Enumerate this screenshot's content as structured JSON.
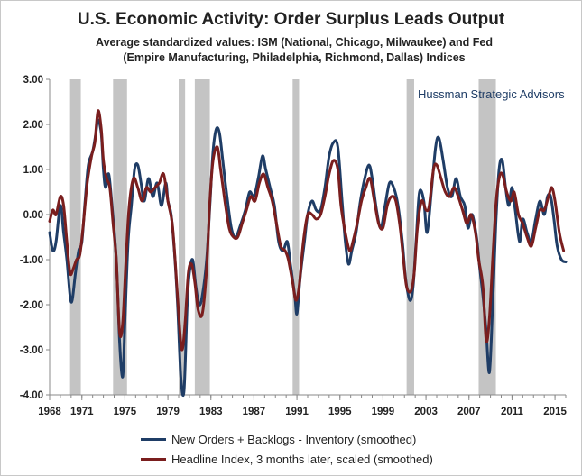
{
  "chart_data": {
    "type": "line",
    "title": "U.S. Economic Activity: Order Surplus Leads Output",
    "subtitle": "Average standardized values: ISM (National, Chicago, Milwaukee) and Fed (Empire Manufacturing, Philadelphia, Richmond, Dallas) Indices",
    "annotation": "Hussman Strategic Advisors",
    "xlabel": "",
    "ylabel": "",
    "xlim": [
      1968,
      2016
    ],
    "ylim": [
      -4,
      3
    ],
    "x_ticks": [
      "1968",
      "1971",
      "1975",
      "1979",
      "1983",
      "1987",
      "1991",
      "1995",
      "1999",
      "2003",
      "2007",
      "2011",
      "2015"
    ],
    "y_ticks": [
      "3.00",
      "2.00",
      "1.00",
      "0.00",
      "-1.00",
      "-2.00",
      "-3.00",
      "-4.00"
    ],
    "grid": false,
    "legend_position": "bottom",
    "recessions": [
      [
        1969.9,
        1970.9
      ],
      [
        1973.9,
        1975.2
      ],
      [
        1980.0,
        1980.6
      ],
      [
        1981.5,
        1982.9
      ],
      [
        1990.6,
        1991.2
      ],
      [
        2001.2,
        2001.9
      ],
      [
        2007.9,
        2009.5
      ]
    ],
    "series": [
      {
        "name": "New Orders + Backlogs - Inventory (smoothed)",
        "color": "#1f3d66",
        "points": [
          [
            1968.0,
            -0.4
          ],
          [
            1968.3,
            -0.8
          ],
          [
            1968.6,
            -0.6
          ],
          [
            1969.0,
            0.2
          ],
          [
            1969.3,
            -0.4
          ],
          [
            1969.6,
            -1.0
          ],
          [
            1969.9,
            -1.8
          ],
          [
            1970.1,
            -1.9
          ],
          [
            1970.4,
            -1.3
          ],
          [
            1970.7,
            -0.8
          ],
          [
            1971.0,
            -0.6
          ],
          [
            1971.3,
            0.3
          ],
          [
            1971.6,
            1.1
          ],
          [
            1972.0,
            1.4
          ],
          [
            1972.3,
            1.8
          ],
          [
            1972.5,
            2.1
          ],
          [
            1972.8,
            1.8
          ],
          [
            1973.0,
            1.0
          ],
          [
            1973.2,
            0.6
          ],
          [
            1973.5,
            0.9
          ],
          [
            1973.8,
            0.2
          ],
          [
            1974.2,
            -1.0
          ],
          [
            1974.5,
            -2.8
          ],
          [
            1974.8,
            -3.6
          ],
          [
            1975.0,
            -2.4
          ],
          [
            1975.3,
            -0.6
          ],
          [
            1975.6,
            0.2
          ],
          [
            1975.9,
            1.0
          ],
          [
            1976.2,
            1.1
          ],
          [
            1976.5,
            0.7
          ],
          [
            1976.8,
            0.3
          ],
          [
            1977.2,
            0.8
          ],
          [
            1977.6,
            0.4
          ],
          [
            1978.0,
            0.7
          ],
          [
            1978.4,
            0.2
          ],
          [
            1978.8,
            0.7
          ],
          [
            1979.0,
            0.3
          ],
          [
            1979.3,
            0.0
          ],
          [
            1979.6,
            -0.8
          ],
          [
            1979.9,
            -2.0
          ],
          [
            1980.2,
            -3.6
          ],
          [
            1980.5,
            -3.9
          ],
          [
            1980.8,
            -2.0
          ],
          [
            1981.0,
            -1.3
          ],
          [
            1981.3,
            -1.0
          ],
          [
            1981.6,
            -1.6
          ],
          [
            1981.9,
            -2.0
          ],
          [
            1982.2,
            -1.8
          ],
          [
            1982.6,
            -1.0
          ],
          [
            1982.9,
            0.2
          ],
          [
            1983.2,
            1.4
          ],
          [
            1983.5,
            1.9
          ],
          [
            1983.8,
            1.8
          ],
          [
            1984.1,
            1.2
          ],
          [
            1984.5,
            0.4
          ],
          [
            1984.9,
            -0.3
          ],
          [
            1985.3,
            -0.5
          ],
          [
            1985.8,
            -0.2
          ],
          [
            1986.2,
            0.1
          ],
          [
            1986.6,
            0.5
          ],
          [
            1987.0,
            0.4
          ],
          [
            1987.4,
            0.8
          ],
          [
            1987.8,
            1.3
          ],
          [
            1988.1,
            1.0
          ],
          [
            1988.5,
            0.6
          ],
          [
            1988.9,
            0.2
          ],
          [
            1989.3,
            -0.6
          ],
          [
            1989.7,
            -0.8
          ],
          [
            1990.1,
            -0.6
          ],
          [
            1990.4,
            -1.1
          ],
          [
            1990.8,
            -1.8
          ],
          [
            1991.0,
            -2.2
          ],
          [
            1991.3,
            -1.4
          ],
          [
            1991.7,
            -0.6
          ],
          [
            1992.0,
            0.0
          ],
          [
            1992.4,
            0.3
          ],
          [
            1992.8,
            0.1
          ],
          [
            1993.2,
            0.1
          ],
          [
            1993.6,
            0.6
          ],
          [
            1994.0,
            1.3
          ],
          [
            1994.4,
            1.6
          ],
          [
            1994.8,
            1.5
          ],
          [
            1995.2,
            0.3
          ],
          [
            1995.5,
            -0.6
          ],
          [
            1995.8,
            -1.1
          ],
          [
            1996.1,
            -0.8
          ],
          [
            1996.5,
            -0.4
          ],
          [
            1996.9,
            0.3
          ],
          [
            1997.3,
            0.8
          ],
          [
            1997.7,
            1.1
          ],
          [
            1998.0,
            0.8
          ],
          [
            1998.4,
            0.1
          ],
          [
            1998.8,
            -0.3
          ],
          [
            1999.2,
            0.2
          ],
          [
            1999.6,
            0.7
          ],
          [
            2000.0,
            0.6
          ],
          [
            2000.4,
            0.2
          ],
          [
            2000.8,
            -0.6
          ],
          [
            2001.1,
            -1.4
          ],
          [
            2001.5,
            -1.9
          ],
          [
            2001.8,
            -1.6
          ],
          [
            2002.1,
            -0.5
          ],
          [
            2002.4,
            0.5
          ],
          [
            2002.8,
            0.3
          ],
          [
            2003.1,
            -0.4
          ],
          [
            2003.5,
            0.5
          ],
          [
            2003.9,
            1.5
          ],
          [
            2004.2,
            1.7
          ],
          [
            2004.6,
            1.2
          ],
          [
            2005.0,
            0.6
          ],
          [
            2005.4,
            0.4
          ],
          [
            2005.8,
            0.8
          ],
          [
            2006.2,
            0.4
          ],
          [
            2006.6,
            0.2
          ],
          [
            2006.9,
            -0.3
          ],
          [
            2007.3,
            0.0
          ],
          [
            2007.7,
            -0.5
          ],
          [
            2008.0,
            -1.2
          ],
          [
            2008.3,
            -1.8
          ],
          [
            2008.6,
            -2.6
          ],
          [
            2008.9,
            -3.5
          ],
          [
            2009.2,
            -2.0
          ],
          [
            2009.5,
            -0.2
          ],
          [
            2009.8,
            1.0
          ],
          [
            2010.1,
            1.2
          ],
          [
            2010.4,
            0.6
          ],
          [
            2010.7,
            0.2
          ],
          [
            2011.0,
            0.6
          ],
          [
            2011.3,
            0.1
          ],
          [
            2011.7,
            -0.6
          ],
          [
            2012.0,
            -0.1
          ],
          [
            2012.4,
            -0.4
          ],
          [
            2012.8,
            -0.6
          ],
          [
            2013.2,
            -0.1
          ],
          [
            2013.6,
            0.3
          ],
          [
            2014.0,
            0.0
          ],
          [
            2014.3,
            0.4
          ],
          [
            2014.6,
            0.4
          ],
          [
            2014.9,
            -0.1
          ],
          [
            2015.2,
            -0.7
          ],
          [
            2015.6,
            -1.0
          ],
          [
            2016.0,
            -1.05
          ]
        ]
      },
      {
        "name": "Headline Index, 3 months later, scaled (smoothed)",
        "color": "#7a1e1e",
        "points": [
          [
            1968.0,
            -0.15
          ],
          [
            1968.3,
            0.1
          ],
          [
            1968.6,
            0.0
          ],
          [
            1969.0,
            0.4
          ],
          [
            1969.3,
            0.2
          ],
          [
            1969.6,
            -0.6
          ],
          [
            1969.9,
            -1.3
          ],
          [
            1970.2,
            -1.2
          ],
          [
            1970.5,
            -1.0
          ],
          [
            1970.8,
            -0.9
          ],
          [
            1971.1,
            -0.3
          ],
          [
            1971.5,
            0.7
          ],
          [
            1971.9,
            1.3
          ],
          [
            1972.2,
            1.6
          ],
          [
            1972.5,
            2.3
          ],
          [
            1972.8,
            1.9
          ],
          [
            1973.0,
            1.2
          ],
          [
            1973.3,
            0.8
          ],
          [
            1973.6,
            0.6
          ],
          [
            1973.9,
            -0.2
          ],
          [
            1974.2,
            -1.0
          ],
          [
            1974.5,
            -2.6
          ],
          [
            1974.8,
            -2.4
          ],
          [
            1975.1,
            -1.0
          ],
          [
            1975.4,
            0.2
          ],
          [
            1975.8,
            0.8
          ],
          [
            1976.2,
            0.6
          ],
          [
            1976.6,
            0.3
          ],
          [
            1977.0,
            0.6
          ],
          [
            1977.4,
            0.5
          ],
          [
            1977.8,
            0.6
          ],
          [
            1978.2,
            0.7
          ],
          [
            1978.6,
            0.9
          ],
          [
            1979.0,
            0.3
          ],
          [
            1979.4,
            -0.2
          ],
          [
            1979.7,
            -1.1
          ],
          [
            1980.0,
            -2.2
          ],
          [
            1980.3,
            -3.0
          ],
          [
            1980.6,
            -2.4
          ],
          [
            1980.9,
            -1.3
          ],
          [
            1981.2,
            -1.1
          ],
          [
            1981.5,
            -1.5
          ],
          [
            1981.8,
            -2.1
          ],
          [
            1982.2,
            -2.2
          ],
          [
            1982.6,
            -1.2
          ],
          [
            1982.9,
            0.3
          ],
          [
            1983.2,
            1.2
          ],
          [
            1983.6,
            1.5
          ],
          [
            1983.9,
            1.0
          ],
          [
            1984.3,
            0.3
          ],
          [
            1984.7,
            -0.3
          ],
          [
            1985.1,
            -0.5
          ],
          [
            1985.5,
            -0.5
          ],
          [
            1985.9,
            -0.2
          ],
          [
            1986.3,
            0.1
          ],
          [
            1986.7,
            0.4
          ],
          [
            1987.1,
            0.3
          ],
          [
            1987.5,
            0.7
          ],
          [
            1987.9,
            0.9
          ],
          [
            1988.3,
            0.6
          ],
          [
            1988.7,
            0.3
          ],
          [
            1989.1,
            -0.2
          ],
          [
            1989.5,
            -0.7
          ],
          [
            1989.9,
            -0.8
          ],
          [
            1990.2,
            -1.0
          ],
          [
            1990.6,
            -1.5
          ],
          [
            1990.9,
            -1.9
          ],
          [
            1991.2,
            -1.6
          ],
          [
            1991.6,
            -0.6
          ],
          [
            1992.0,
            0.0
          ],
          [
            1992.4,
            0.0
          ],
          [
            1992.8,
            -0.1
          ],
          [
            1993.2,
            0.0
          ],
          [
            1993.6,
            0.4
          ],
          [
            1994.0,
            0.9
          ],
          [
            1994.4,
            1.2
          ],
          [
            1994.8,
            1.0
          ],
          [
            1995.1,
            0.2
          ],
          [
            1995.5,
            -0.4
          ],
          [
            1995.9,
            -0.8
          ],
          [
            1996.2,
            -0.6
          ],
          [
            1996.6,
            -0.2
          ],
          [
            1997.0,
            0.3
          ],
          [
            1997.4,
            0.6
          ],
          [
            1997.8,
            0.8
          ],
          [
            1998.2,
            0.3
          ],
          [
            1998.6,
            -0.2
          ],
          [
            1999.0,
            -0.3
          ],
          [
            1999.4,
            0.2
          ],
          [
            1999.8,
            0.4
          ],
          [
            2000.2,
            0.3
          ],
          [
            2000.6,
            -0.3
          ],
          [
            2000.9,
            -1.0
          ],
          [
            2001.2,
            -1.6
          ],
          [
            2001.6,
            -1.7
          ],
          [
            2001.9,
            -1.3
          ],
          [
            2002.2,
            -0.3
          ],
          [
            2002.6,
            0.3
          ],
          [
            2003.0,
            0.1
          ],
          [
            2003.3,
            0.2
          ],
          [
            2003.7,
            1.0
          ],
          [
            2004.0,
            1.1
          ],
          [
            2004.4,
            0.8
          ],
          [
            2004.8,
            0.5
          ],
          [
            2005.2,
            0.4
          ],
          [
            2005.6,
            0.6
          ],
          [
            2006.0,
            0.4
          ],
          [
            2006.4,
            0.1
          ],
          [
            2006.8,
            -0.2
          ],
          [
            2007.2,
            0.0
          ],
          [
            2007.6,
            -0.4
          ],
          [
            2007.9,
            -1.0
          ],
          [
            2008.3,
            -1.6
          ],
          [
            2008.6,
            -2.8
          ],
          [
            2008.9,
            -2.3
          ],
          [
            2009.2,
            -1.0
          ],
          [
            2009.5,
            0.2
          ],
          [
            2009.8,
            0.8
          ],
          [
            2010.1,
            0.9
          ],
          [
            2010.5,
            0.5
          ],
          [
            2010.9,
            0.3
          ],
          [
            2011.2,
            0.5
          ],
          [
            2011.6,
            0.0
          ],
          [
            2012.0,
            -0.2
          ],
          [
            2012.4,
            -0.5
          ],
          [
            2012.8,
            -0.7
          ],
          [
            2013.2,
            -0.3
          ],
          [
            2013.6,
            0.1
          ],
          [
            2014.0,
            0.1
          ],
          [
            2014.4,
            0.4
          ],
          [
            2014.7,
            0.6
          ],
          [
            2015.0,
            0.3
          ],
          [
            2015.4,
            -0.4
          ],
          [
            2015.8,
            -0.8
          ]
        ]
      }
    ]
  }
}
